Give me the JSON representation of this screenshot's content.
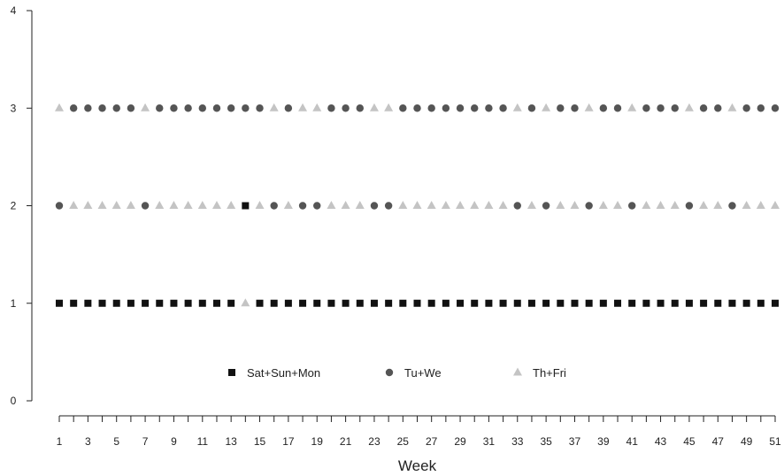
{
  "chart_data": {
    "type": "scatter",
    "title": "",
    "xlabel": "Week",
    "ylabel": "",
    "xlim": [
      1,
      51
    ],
    "ylim": [
      0,
      4
    ],
    "x_ticks": [
      1,
      3,
      5,
      7,
      9,
      11,
      13,
      15,
      17,
      19,
      21,
      23,
      25,
      27,
      29,
      31,
      33,
      35,
      37,
      39,
      41,
      43,
      45,
      47,
      49,
      51
    ],
    "y_ticks": [
      0,
      1,
      2,
      3,
      4
    ],
    "grid": false,
    "legend_position": "bottom-center, inside plot",
    "x": [
      1,
      2,
      3,
      4,
      5,
      6,
      7,
      8,
      9,
      10,
      11,
      12,
      13,
      14,
      15,
      16,
      17,
      18,
      19,
      20,
      21,
      22,
      23,
      24,
      25,
      26,
      27,
      28,
      29,
      30,
      31,
      32,
      33,
      34,
      35,
      36,
      37,
      38,
      39,
      40,
      41,
      42,
      43,
      44,
      45,
      46,
      47,
      48,
      49,
      50,
      51
    ],
    "series": [
      {
        "name": "Sat+Sun+Mon",
        "marker": "square",
        "color": "#111111",
        "values": [
          1,
          1,
          1,
          1,
          1,
          1,
          1,
          1,
          1,
          1,
          1,
          1,
          1,
          2,
          1,
          1,
          1,
          1,
          1,
          1,
          1,
          1,
          1,
          1,
          1,
          1,
          1,
          1,
          1,
          1,
          1,
          1,
          1,
          1,
          1,
          1,
          1,
          1,
          1,
          1,
          1,
          1,
          1,
          1,
          1,
          1,
          1,
          1,
          1,
          1,
          1
        ]
      },
      {
        "name": "Tu+We",
        "marker": "circle",
        "color": "#555555",
        "values": [
          2,
          3,
          3,
          3,
          3,
          3,
          2,
          3,
          3,
          3,
          3,
          3,
          3,
          3,
          3,
          2,
          3,
          2,
          2,
          3,
          3,
          3,
          2,
          2,
          3,
          3,
          3,
          3,
          3,
          3,
          3,
          3,
          2,
          3,
          2,
          3,
          3,
          2,
          3,
          3,
          2,
          3,
          3,
          3,
          2,
          3,
          3,
          2,
          3,
          3,
          3
        ]
      },
      {
        "name": "Th+Fri",
        "marker": "triangle",
        "color": "#c4c4c4",
        "values": [
          3,
          2,
          2,
          2,
          2,
          2,
          3,
          2,
          2,
          2,
          2,
          2,
          2,
          1,
          2,
          3,
          2,
          3,
          3,
          2,
          2,
          2,
          3,
          3,
          2,
          2,
          2,
          2,
          2,
          2,
          2,
          2,
          3,
          2,
          3,
          2,
          2,
          3,
          2,
          2,
          3,
          2,
          2,
          2,
          3,
          2,
          2,
          3,
          2,
          2,
          2
        ]
      }
    ]
  }
}
